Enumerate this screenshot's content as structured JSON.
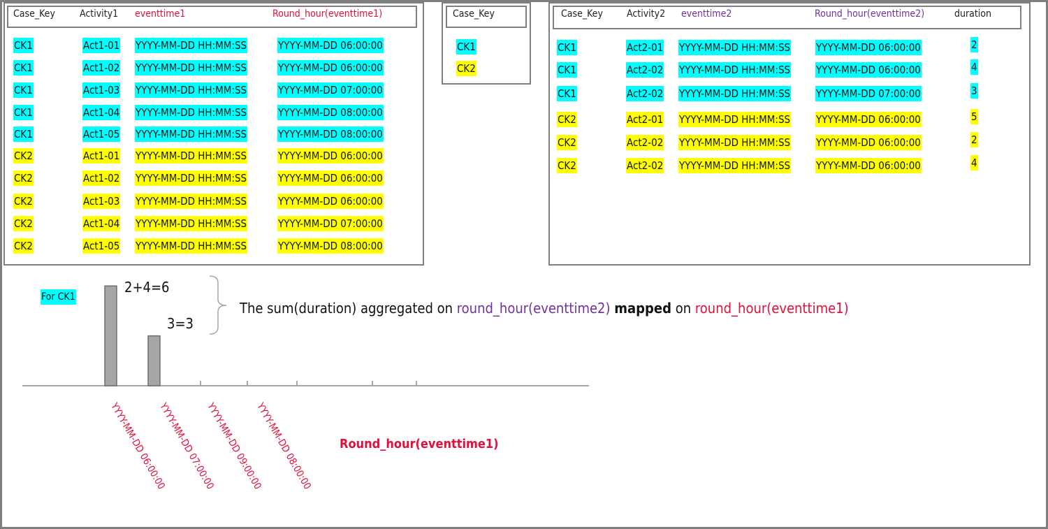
{
  "table1": {
    "headers": [
      "Case_Key",
      "Activity1",
      "eventtime1",
      "Round_hour(eventtime1)"
    ],
    "header_colors": [
      "#222222",
      "#222222",
      "#e0103a",
      "#e0103a"
    ],
    "rows": [
      [
        "CK1",
        "Act1-01",
        "YYYY-MM-DD HH:MM:SS",
        "YYYY-MM-DD 06:00:00"
      ],
      [
        "CK1",
        "Act1-02",
        "YYYY-MM-DD HH:MM:SS",
        "YYYY-MM-DD 06:00:00"
      ],
      [
        "CK1",
        "Act1-03",
        "YYYY-MM-DD HH:MM:SS",
        "YYYY-MM-DD 07:00:00"
      ],
      [
        "CK1",
        "Act1-04",
        "YYYY-MM-DD HH:MM:SS",
        "YYYY-MM-DD 08:00:00"
      ],
      [
        "CK1",
        "Act1-05",
        "YYYY-MM-DD HH:MM:SS",
        "YYYY-MM-DD 08:00:00"
      ],
      [
        "CK2",
        "Act1-01",
        "YYYY-MM-DD HH:MM:SS",
        "YYYY-MM-DD 06:00:00"
      ],
      [
        "CK2",
        "Act1-02",
        "YYYY-MM-DD HH:MM:SS",
        "YYYY-MM-DD 06:00:00"
      ],
      [
        "CK2",
        "Act1-03",
        "YYYY-MM-DD HH:MM:SS",
        "YYYY-MM-DD 06:00:00"
      ],
      [
        "CK2",
        "Act1-04",
        "YYYY-MM-DD HH:MM:SS",
        "YYYY-MM-DD 07:00:00"
      ],
      [
        "CK2",
        "Act1-05",
        "YYYY-MM-DD HH:MM:SS",
        "YYYY-MM-DD 08:00:00"
      ]
    ],
    "row_colors": [
      "#00ffff",
      "#00ffff",
      "#00ffff",
      "#00ffff",
      "#00ffff",
      "#ffff00",
      "#ffff00",
      "#ffff00",
      "#ffff00",
      "#ffff00"
    ]
  },
  "table2": {
    "headers": [
      "Case_Key"
    ],
    "header_colors": [
      "#222222"
    ],
    "rows": [
      [
        "CK1"
      ],
      [
        "CK2"
      ]
    ],
    "row_colors": [
      "#00ffff",
      "#ffff00"
    ]
  },
  "table3": {
    "headers": [
      "Case_Key",
      "Activity2",
      "eventtime2",
      "Round_hour(eventtime2)",
      "duration"
    ],
    "header_colors": [
      "#222222",
      "#222222",
      "#7030a0",
      "#7030a0",
      "#222222"
    ],
    "rows": [
      [
        "CK1",
        "Act2-01",
        "YYYY-MM-DD HH:MM:SS",
        "YYYY-MM-DD 06:00:00",
        2
      ],
      [
        "CK1",
        "Act2-02",
        "YYYY-MM-DD HH:MM:SS",
        "YYYY-MM-DD 06:00:00",
        4
      ],
      [
        "CK1",
        "Act2-02",
        "YYYY-MM-DD HH:MM:SS",
        "YYYY-MM-DD 07:00:00",
        3
      ],
      [
        "CK2",
        "Act2-01",
        "YYYY-MM-DD HH:MM:SS",
        "YYYY-MM-DD 06:00:00",
        5
      ],
      [
        "CK2",
        "Act2-02",
        "YYYY-MM-DD HH:MM:SS",
        "YYYY-MM-DD 06:00:00",
        2
      ],
      [
        "CK2",
        "Act2-02",
        "YYYY-MM-DD HH:MM:SS",
        "YYYY-MM-DD 06:00:00",
        4
      ]
    ],
    "row_colors": [
      "#00ffff",
      "#00ffff",
      "#00ffff",
      "#ffff00",
      "#ffff00",
      "#ffff00"
    ]
  },
  "chart": {
    "label": "For CK1",
    "label_color": "#00ffff",
    "bar_color": "#a6a6a6",
    "bars": [
      {
        "annotation": "2+4=6",
        "value": 6
      },
      {
        "annotation": "3=3",
        "value": 3
      }
    ],
    "x_labels": [
      "YYYY-MM-DD 06:00:00",
      "YYYY-MM-DD 07:00:00",
      "YYYY-MM-DD 09:00:00",
      "YYYY-MM-DD 08:00:00"
    ],
    "x_title": "Round_hour(eventtime1)",
    "x_color": "#e0103a"
  },
  "note": {
    "parts": [
      "The sum(duration) aggregated on",
      "round_hour(eventtime2)",
      "mapped",
      "on",
      "round_hour(eventtime1)"
    ],
    "colors": [
      "#111111",
      "#7030a0",
      "#111111",
      "#111111",
      "#e0103a"
    ]
  }
}
